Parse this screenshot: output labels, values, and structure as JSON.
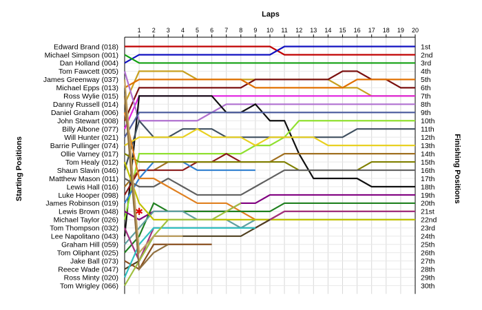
{
  "chart_data": {
    "type": "line",
    "title": "Laps",
    "ylabel_left": "Starting Positions",
    "ylabel_right": "Finishing Positions",
    "laps": [
      1,
      2,
      3,
      4,
      5,
      6,
      7,
      8,
      9,
      10,
      11,
      12,
      13,
      14,
      15,
      16,
      17,
      18,
      19,
      20
    ],
    "drivers": [
      "Edward Brand (018)",
      "Michael Simpson (001)",
      "Dan Holland (004)",
      "Tom Fawcett (005)",
      "James Greenway (037)",
      "Michael Epps (013)",
      "Ross Wylie (015)",
      "Danny Russell (014)",
      "Daniel Graham (006)",
      "John Stewart (008)",
      "Billy Albone (077)",
      "Will Hunter (021)",
      "Barrie Pullinger (074)",
      "Ollie Varney (017)",
      "Tom Healy (012)",
      "Shaun Slavin (046)",
      "Matthew Mason (011)",
      "Lewis Hall (016)",
      "Luke Hooper (098)",
      "James Robinson (019)",
      "Lewis Brown (048)",
      "Michael Taylor (026)",
      "Tom Thompson (032)",
      "Lee Napolitano (043)",
      "Graham Hill (059)",
      "Tom Oliphant (025)",
      "Jake Ball (073)",
      "Reece Wade (047)",
      "Ross Minty (020)",
      "Tom Wrigley (066)"
    ],
    "finishing_positions": [
      "1st",
      "2nd",
      "3rd",
      "4th",
      "5th",
      "6th",
      "7th",
      "8th",
      "9th",
      "10th",
      "11th",
      "12th",
      "13th",
      "14th",
      "15th",
      "16th",
      "17th",
      "18th",
      "19th",
      "20th",
      "21st",
      "22nd",
      "23rd",
      "24th",
      "25th",
      "26th",
      "27th",
      "28th",
      "29th",
      "30th"
    ],
    "series": [
      {
        "color": "#c00000",
        "positions": [
          1,
          1,
          1,
          1,
          1,
          1,
          1,
          1,
          1,
          1,
          1,
          2,
          2,
          2,
          2,
          2,
          2,
          2,
          2,
          2,
          2
        ]
      },
      {
        "color": "#1010c0",
        "positions": [
          3,
          2,
          2,
          2,
          2,
          2,
          2,
          2,
          2,
          2,
          2,
          1,
          1,
          1,
          1,
          1,
          1,
          1,
          1,
          1,
          1
        ]
      },
      {
        "color": "#10a010",
        "positions": [
          2,
          3,
          3,
          3,
          3,
          3,
          3,
          3,
          3,
          3,
          3,
          3,
          3,
          3,
          3,
          3,
          3,
          3,
          3,
          3,
          3
        ]
      },
      {
        "color": "#c8a020",
        "positions": [
          8,
          4,
          4,
          4,
          4,
          5,
          5,
          5,
          5,
          5,
          5,
          5,
          5,
          5,
          5,
          6,
          6,
          7,
          7,
          7,
          7
        ]
      },
      {
        "color": "#7b1010",
        "positions": [
          10,
          6,
          6,
          6,
          6,
          6,
          6,
          6,
          6,
          5,
          5,
          5,
          5,
          5,
          5,
          4,
          4,
          5,
          5,
          6,
          6
        ]
      },
      {
        "color": "#e07000",
        "positions": [
          6,
          5,
          5,
          5,
          5,
          5,
          5,
          5,
          5,
          6,
          6,
          6,
          6,
          6,
          6,
          6,
          5,
          5,
          5,
          5,
          5
        ]
      },
      {
        "color": "#e020e0",
        "positions": [
          11,
          7,
          7,
          7,
          7,
          7,
          7,
          7,
          7,
          7,
          7,
          7,
          7,
          7,
          7,
          7,
          7,
          7,
          7,
          7,
          7
        ]
      },
      {
        "color": "#b070d0",
        "positions": [
          4,
          10,
          10,
          10,
          10,
          10,
          9,
          8,
          8,
          8,
          8,
          8,
          8,
          8,
          8,
          8,
          8,
          8,
          8,
          8,
          8
        ]
      },
      {
        "color": "#101010",
        "positions": [
          24,
          7,
          7,
          7,
          7,
          7,
          7,
          9,
          9,
          8,
          10,
          10,
          14,
          17,
          17,
          17,
          17,
          18,
          18,
          18,
          18
        ]
      },
      {
        "color": "#5060a0",
        "positions": [
          12,
          9,
          9,
          9,
          9,
          9,
          9,
          9,
          9,
          9,
          9,
          9,
          9,
          9,
          9,
          9,
          9,
          9,
          9,
          9,
          9
        ]
      },
      {
        "color": "#90e030",
        "positions": [
          22,
          14,
          14,
          14,
          14,
          14,
          14,
          14,
          14,
          13,
          13,
          12,
          10,
          10,
          10,
          10,
          10,
          10,
          10,
          10,
          10
        ]
      },
      {
        "color": "#405060",
        "positions": [
          16,
          10,
          12,
          12,
          11,
          11,
          11,
          12,
          12,
          12,
          12,
          12,
          12,
          12,
          12,
          12,
          11,
          11,
          11,
          11,
          11
        ]
      },
      {
        "color": "#e8d020",
        "positions": [
          13,
          12,
          12,
          12,
          12,
          11,
          12,
          12,
          12,
          13,
          12,
          12,
          12,
          12,
          13,
          13,
          13,
          13,
          13,
          13,
          13
        ]
      },
      {
        "color": "#a07020",
        "positions": [
          18,
          16,
          16,
          15,
          15,
          15,
          15,
          15,
          15,
          15,
          15,
          14,
          14,
          14,
          14,
          14,
          14,
          14,
          14,
          14,
          14
        ]
      },
      {
        "color": "#8b1a1a",
        "positions": [
          19,
          16,
          16,
          16,
          16,
          15,
          15,
          14,
          15,
          15
        ]
      },
      {
        "color": "#3080d0",
        "positions": [
          20,
          17,
          15,
          15,
          15,
          16,
          16,
          16,
          16,
          16
        ]
      },
      {
        "color": "#808000",
        "positions": [
          14,
          15,
          15,
          15,
          15,
          15,
          15,
          15,
          15,
          15,
          15,
          15,
          16,
          16,
          16,
          16,
          16,
          15,
          15,
          15,
          15
        ]
      },
      {
        "color": "#606060",
        "positions": [
          17,
          18,
          18,
          17,
          18,
          19,
          19,
          19,
          19,
          18,
          17,
          16,
          16,
          16,
          16,
          16,
          16,
          16,
          16,
          16,
          16
        ]
      },
      {
        "color": "#e08020",
        "positions": [
          9,
          17,
          17,
          18,
          19,
          20,
          20,
          20,
          21,
          22,
          22,
          21,
          21,
          21,
          21,
          21,
          21,
          21,
          21,
          21,
          21
        ]
      },
      {
        "color": "#800080",
        "positions": [
          21,
          22,
          21,
          21,
          21,
          21,
          21,
          21,
          20,
          20,
          19,
          19,
          19,
          19,
          19,
          19,
          19,
          19,
          19,
          19,
          19
        ]
      },
      {
        "color": "#208020",
        "positions": [
          26,
          24,
          20,
          21,
          21,
          21,
          21,
          21,
          21,
          21,
          21,
          20,
          20,
          20,
          20,
          20,
          20,
          20,
          20,
          20,
          20
        ]
      },
      {
        "color": "#60a0a0",
        "positions": [
          25,
          23,
          21,
          21,
          21,
          22,
          22,
          22,
          23,
          22,
          22,
          22,
          22,
          22,
          22,
          22,
          22,
          22,
          22,
          22,
          22
        ]
      },
      {
        "color": "#c0c000",
        "positions": [
          15,
          20,
          22,
          22,
          22,
          22,
          22,
          22,
          22,
          22,
          22,
          22,
          22,
          22,
          22,
          22,
          22,
          22,
          22,
          22,
          22
        ]
      },
      {
        "color": "#a03080",
        "positions": [
          23,
          27,
          23,
          23,
          23,
          23,
          23,
          23,
          23,
          23,
          22,
          21,
          21,
          21,
          21,
          21,
          21,
          21,
          21,
          21,
          21
        ]
      },
      {
        "color": "#504020",
        "positions": [
          28,
          27,
          24,
          24,
          24,
          24,
          24,
          24,
          24,
          23,
          22
        ]
      },
      {
        "color": "#8a5020",
        "positions": [
          27,
          28,
          25,
          25,
          25,
          25,
          25
        ]
      },
      {
        "color": "#30c0c0",
        "positions": [
          29,
          25,
          23,
          23,
          23,
          23,
          23,
          23,
          23,
          23
        ]
      },
      {
        "color": "#a0c040",
        "positions": [
          30,
          27,
          24,
          22,
          22,
          22,
          22,
          21,
          20
        ]
      },
      {
        "color": "#c0a060",
        "positions": [
          5,
          26,
          24,
          24,
          24
        ]
      },
      {
        "color": "#907040",
        "positions": [
          7,
          28,
          26,
          25
        ]
      }
    ],
    "marker": {
      "label": "✱",
      "color": "#e00000",
      "lap": 1,
      "position": 21
    }
  }
}
